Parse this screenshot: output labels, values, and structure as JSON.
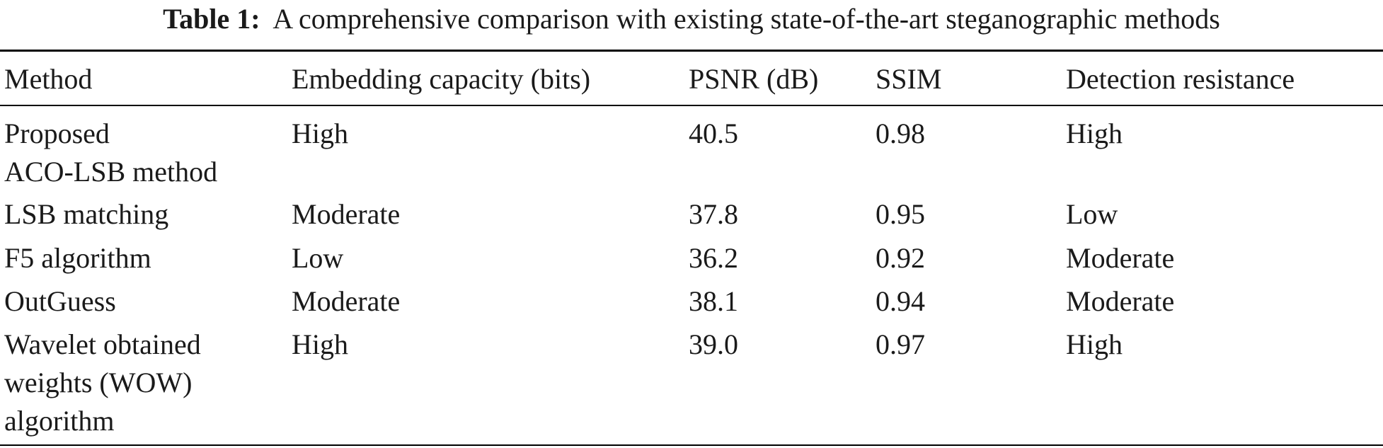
{
  "caption": {
    "label": "Table 1:",
    "text": "A comprehensive comparison with existing state-of-the-art steganographic methods"
  },
  "table": {
    "headers": [
      "Method",
      "Embedding capacity (bits)",
      "PSNR (dB)",
      "SSIM",
      "Detection resistance"
    ],
    "rows": [
      {
        "method": [
          "Proposed",
          "ACO-LSB method"
        ],
        "capacity": "High",
        "psnr": "40.5",
        "ssim": "0.98",
        "resistance": "High"
      },
      {
        "method": [
          "LSB matching"
        ],
        "capacity": "Moderate",
        "psnr": "37.8",
        "ssim": "0.95",
        "resistance": "Low"
      },
      {
        "method": [
          "F5 algorithm"
        ],
        "capacity": "Low",
        "psnr": "36.2",
        "ssim": "0.92",
        "resistance": "Moderate"
      },
      {
        "method": [
          "OutGuess"
        ],
        "capacity": "Moderate",
        "psnr": "38.1",
        "ssim": "0.94",
        "resistance": "Moderate"
      },
      {
        "method": [
          "Wavelet obtained",
          "weights (WOW)",
          "algorithm"
        ],
        "capacity": "High",
        "psnr": "39.0",
        "ssim": "0.97",
        "resistance": "High"
      }
    ]
  }
}
